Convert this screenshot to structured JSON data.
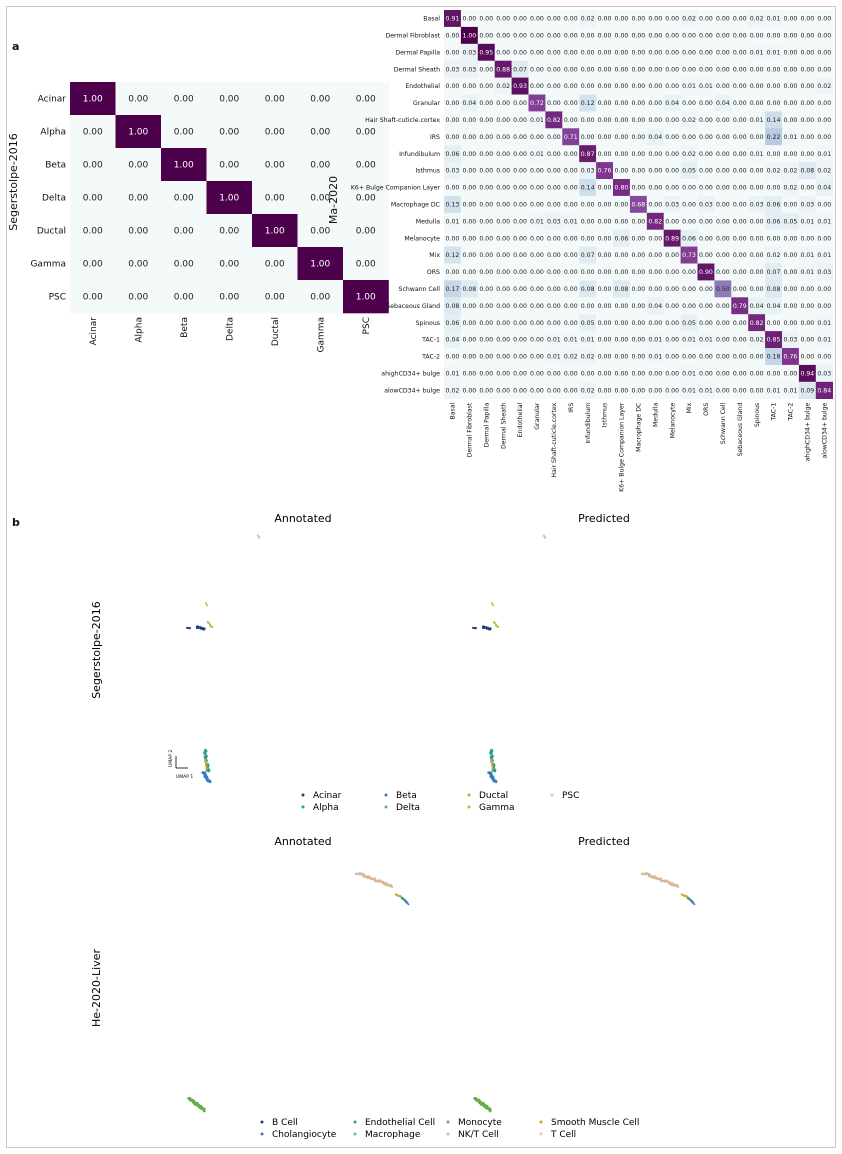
{
  "panels": {
    "a": "a",
    "b": "b"
  },
  "chart_data": [
    {
      "type": "heatmap",
      "ylabel": "Segerstolpe-2016",
      "rows": [
        "Acinar",
        "Alpha",
        "Beta",
        "Delta",
        "Ductal",
        "Gamma",
        "PSC"
      ],
      "cols": [
        "Acinar",
        "Alpha",
        "Beta",
        "Delta",
        "Ductal",
        "Gamma",
        "PSC"
      ],
      "values": [
        [
          1.0,
          0.0,
          0.0,
          0.0,
          0.0,
          0.0,
          0.0
        ],
        [
          0.0,
          1.0,
          0.0,
          0.0,
          0.0,
          0.0,
          0.0
        ],
        [
          0.0,
          0.0,
          1.0,
          0.0,
          0.0,
          0.0,
          0.0
        ],
        [
          0.0,
          0.0,
          0.0,
          1.0,
          0.0,
          0.0,
          0.0
        ],
        [
          0.0,
          0.0,
          0.0,
          0.0,
          1.0,
          0.0,
          0.0
        ],
        [
          0.0,
          0.0,
          0.0,
          0.0,
          0.0,
          1.0,
          0.0
        ],
        [
          0.0,
          0.0,
          0.0,
          0.0,
          0.0,
          0.0,
          1.0
        ]
      ]
    },
    {
      "type": "heatmap",
      "ylabel": "Ma-2020",
      "rows": [
        "Basal",
        "Dermal Fibroblast",
        "Dermal Papilla",
        "Dermal Sheath",
        "Endothelial",
        "Granular",
        "Hair Shaft-cuticle.cortex",
        "IRS",
        "Infundibulum",
        "Isthmus",
        "K6+ Bulge Companion Layer",
        "Macrophage DC",
        "Medulla",
        "Melanocyte",
        "Mix",
        "ORS",
        "Schwann Cell",
        "Sebaceous Gland",
        "Spinous",
        "TAC-1",
        "TAC-2",
        "ahighCD34+ bulge",
        "alowCD34+ bulge"
      ],
      "cols": [
        "Basal",
        "Dermal Fibroblast",
        "Dermal Papilla",
        "Dermal Sheath",
        "Endothelial",
        "Granular",
        "Hair Shaft-cuticle.cortex",
        "IRS",
        "Infundibulum",
        "Isthmus",
        "K6+ Bulge Companion Layer",
        "Macrophage DC",
        "Medulla",
        "Melanocyte",
        "Mix",
        "ORS",
        "Schwann Cell",
        "Sebaceous Gland",
        "Spinous",
        "TAC-1",
        "TAC-2",
        "ahighCD34+ bulge",
        "alowCD34+ bulge"
      ],
      "values": [
        [
          0.91,
          0.0,
          0.0,
          0.0,
          0.0,
          0.0,
          0.0,
          0.0,
          0.02,
          0.0,
          0.0,
          0.0,
          0.0,
          0.0,
          0.02,
          0.0,
          0.0,
          0.0,
          0.02,
          0.01,
          0.0,
          0.0,
          0.0
        ],
        [
          0.0,
          1.0,
          0.0,
          0.0,
          0.0,
          0.0,
          0.0,
          0.0,
          0.0,
          0.0,
          0.0,
          0.0,
          0.0,
          0.0,
          0.0,
          0.0,
          0.0,
          0.0,
          0.0,
          0.0,
          0.0,
          0.0,
          0.0
        ],
        [
          0.0,
          0.03,
          0.95,
          0.0,
          0.0,
          0.0,
          0.0,
          0.0,
          0.0,
          0.0,
          0.0,
          0.0,
          0.0,
          0.0,
          0.0,
          0.0,
          0.0,
          0.0,
          0.01,
          0.01,
          0.0,
          0.0,
          0.0
        ],
        [
          0.03,
          0.03,
          0.0,
          0.88,
          0.07,
          0.0,
          0.0,
          0.0,
          0.0,
          0.0,
          0.0,
          0.0,
          0.0,
          0.0,
          0.0,
          0.0,
          0.0,
          0.0,
          0.0,
          0.0,
          0.0,
          0.0,
          0.0
        ],
        [
          0.0,
          0.0,
          0.0,
          0.02,
          0.93,
          0.0,
          0.0,
          0.0,
          0.0,
          0.0,
          0.0,
          0.0,
          0.0,
          0.0,
          0.01,
          0.01,
          0.0,
          0.0,
          0.0,
          0.0,
          0.0,
          0.0,
          0.02
        ],
        [
          0.0,
          0.04,
          0.0,
          0.0,
          0.0,
          0.72,
          0.0,
          0.0,
          0.12,
          0.0,
          0.0,
          0.0,
          0.0,
          0.04,
          0.0,
          0.0,
          0.04,
          0.0,
          0.0,
          0.0,
          0.0,
          0.0,
          0.0
        ],
        [
          0.0,
          0.0,
          0.0,
          0.0,
          0.0,
          0.01,
          0.82,
          0.0,
          0.0,
          0.0,
          0.0,
          0.0,
          0.0,
          0.0,
          0.02,
          0.0,
          0.0,
          0.0,
          0.01,
          0.14,
          0.0,
          0.0,
          0.0
        ],
        [
          0.0,
          0.0,
          0.0,
          0.0,
          0.0,
          0.0,
          0.0,
          0.71,
          0.0,
          0.0,
          0.0,
          0.0,
          0.04,
          0.0,
          0.0,
          0.0,
          0.0,
          0.0,
          0.0,
          0.22,
          0.01,
          0.0,
          0.0
        ],
        [
          0.06,
          0.0,
          0.0,
          0.0,
          0.0,
          0.01,
          0.0,
          0.0,
          0.87,
          0.0,
          0.0,
          0.0,
          0.0,
          0.0,
          0.02,
          0.0,
          0.0,
          0.0,
          0.01,
          0.0,
          0.0,
          0.0,
          0.01
        ],
        [
          0.03,
          0.0,
          0.0,
          0.0,
          0.0,
          0.0,
          0.0,
          0.0,
          0.03,
          0.76,
          0.0,
          0.0,
          0.0,
          0.0,
          0.05,
          0.0,
          0.0,
          0.0,
          0.0,
          0.02,
          0.02,
          0.08,
          0.02
        ],
        [
          0.0,
          0.0,
          0.0,
          0.0,
          0.0,
          0.0,
          0.0,
          0.0,
          0.14,
          0.0,
          0.8,
          0.0,
          0.0,
          0.0,
          0.0,
          0.0,
          0.0,
          0.0,
          0.0,
          0.0,
          0.02,
          0.0,
          0.04
        ],
        [
          0.13,
          0.0,
          0.0,
          0.0,
          0.0,
          0.0,
          0.0,
          0.0,
          0.0,
          0.0,
          0.0,
          0.68,
          0.0,
          0.03,
          0.0,
          0.03,
          0.0,
          0.0,
          0.03,
          0.06,
          0.0,
          0.03,
          0.0
        ],
        [
          0.01,
          0.0,
          0.0,
          0.0,
          0.0,
          0.01,
          0.03,
          0.01,
          0.0,
          0.0,
          0.0,
          0.0,
          0.82,
          0.0,
          0.0,
          0.0,
          0.0,
          0.0,
          0.0,
          0.06,
          0.05,
          0.01,
          0.01
        ],
        [
          0.0,
          0.0,
          0.0,
          0.0,
          0.0,
          0.0,
          0.0,
          0.0,
          0.0,
          0.0,
          0.06,
          0.0,
          0.0,
          0.89,
          0.06,
          0.0,
          0.0,
          0.0,
          0.0,
          0.0,
          0.0,
          0.0,
          0.0
        ],
        [
          0.12,
          0.0,
          0.0,
          0.0,
          0.0,
          0.0,
          0.0,
          0.0,
          0.07,
          0.0,
          0.0,
          0.0,
          0.0,
          0.0,
          0.73,
          0.0,
          0.0,
          0.0,
          0.0,
          0.02,
          0.0,
          0.01,
          0.01
        ],
        [
          0.0,
          0.0,
          0.0,
          0.0,
          0.0,
          0.0,
          0.0,
          0.0,
          0.0,
          0.0,
          0.0,
          0.0,
          0.0,
          0.0,
          0.0,
          0.9,
          0.0,
          0.0,
          0.0,
          0.07,
          0.0,
          0.01,
          0.03
        ],
        [
          0.17,
          0.08,
          0.0,
          0.0,
          0.0,
          0.0,
          0.0,
          0.0,
          0.08,
          0.0,
          0.08,
          0.0,
          0.0,
          0.0,
          0.0,
          0.0,
          0.5,
          0.0,
          0.0,
          0.08,
          0.0,
          0.0,
          0.0
        ],
        [
          0.08,
          0.0,
          0.0,
          0.0,
          0.0,
          0.0,
          0.0,
          0.0,
          0.0,
          0.0,
          0.0,
          0.0,
          0.04,
          0.0,
          0.0,
          0.0,
          0.0,
          0.79,
          0.04,
          0.04,
          0.0,
          0.0,
          0.0
        ],
        [
          0.06,
          0.0,
          0.0,
          0.0,
          0.0,
          0.0,
          0.0,
          0.0,
          0.05,
          0.0,
          0.0,
          0.0,
          0.0,
          0.0,
          0.05,
          0.0,
          0.0,
          0.0,
          0.82,
          0.0,
          0.0,
          0.0,
          0.01
        ],
        [
          0.04,
          0.0,
          0.0,
          0.0,
          0.0,
          0.0,
          0.01,
          0.01,
          0.01,
          0.0,
          0.0,
          0.0,
          0.01,
          0.0,
          0.01,
          0.01,
          0.0,
          0.0,
          0.02,
          0.85,
          0.03,
          0.0,
          0.01
        ],
        [
          0.0,
          0.0,
          0.0,
          0.0,
          0.0,
          0.0,
          0.01,
          0.02,
          0.02,
          0.0,
          0.0,
          0.0,
          0.01,
          0.0,
          0.0,
          0.0,
          0.0,
          0.0,
          0.0,
          0.18,
          0.76,
          0.0,
          0.0
        ],
        [
          0.01,
          0.0,
          0.0,
          0.0,
          0.0,
          0.0,
          0.0,
          0.0,
          0.0,
          0.0,
          0.0,
          0.0,
          0.0,
          0.0,
          0.01,
          0.0,
          0.0,
          0.0,
          0.0,
          0.0,
          0.0,
          0.94,
          0.03
        ],
        [
          0.02,
          0.0,
          0.0,
          0.0,
          0.0,
          0.0,
          0.0,
          0.0,
          0.02,
          0.0,
          0.0,
          0.0,
          0.0,
          0.0,
          0.01,
          0.01,
          0.0,
          0.0,
          0.0,
          0.01,
          0.01,
          0.09,
          0.84
        ]
      ]
    },
    {
      "type": "scatter",
      "row_label": "Segerstolpe-2016",
      "titles": [
        "Annotated",
        "Predicted"
      ],
      "axis_hint": {
        "x": "UMAP 1",
        "y": "UMAP 2"
      },
      "legend": [
        {
          "name": "Acinar",
          "color": "#1f3f7a"
        },
        {
          "name": "Alpha",
          "color": "#2a9d8f"
        },
        {
          "name": "Beta",
          "color": "#3a7cc0"
        },
        {
          "name": "Delta",
          "color": "#58b37a"
        },
        {
          "name": "Ductal",
          "color": "#c9a632"
        },
        {
          "name": "Gamma",
          "color": "#a7bf3e"
        },
        {
          "name": "PSC",
          "color": "#e0c6a8"
        }
      ]
    },
    {
      "type": "scatter",
      "row_label": "He-2020-Liver",
      "titles": [
        "Annotated",
        "Predicted"
      ],
      "legend": [
        {
          "name": "B Cell",
          "color": "#1f3f7a"
        },
        {
          "name": "Cholangiocyte",
          "color": "#3a7cc0"
        },
        {
          "name": "Endothelial Cell",
          "color": "#2a9d8f"
        },
        {
          "name": "Macrophage",
          "color": "#7fa8c9"
        },
        {
          "name": "Monocyte",
          "color": "#6aaa4c"
        },
        {
          "name": "NK/T Cell",
          "color": "#d8b89a"
        },
        {
          "name": "Smooth Muscle Cell",
          "color": "#c9a632"
        },
        {
          "name": "T Cell",
          "color": "#e6cdb0"
        }
      ]
    }
  ]
}
